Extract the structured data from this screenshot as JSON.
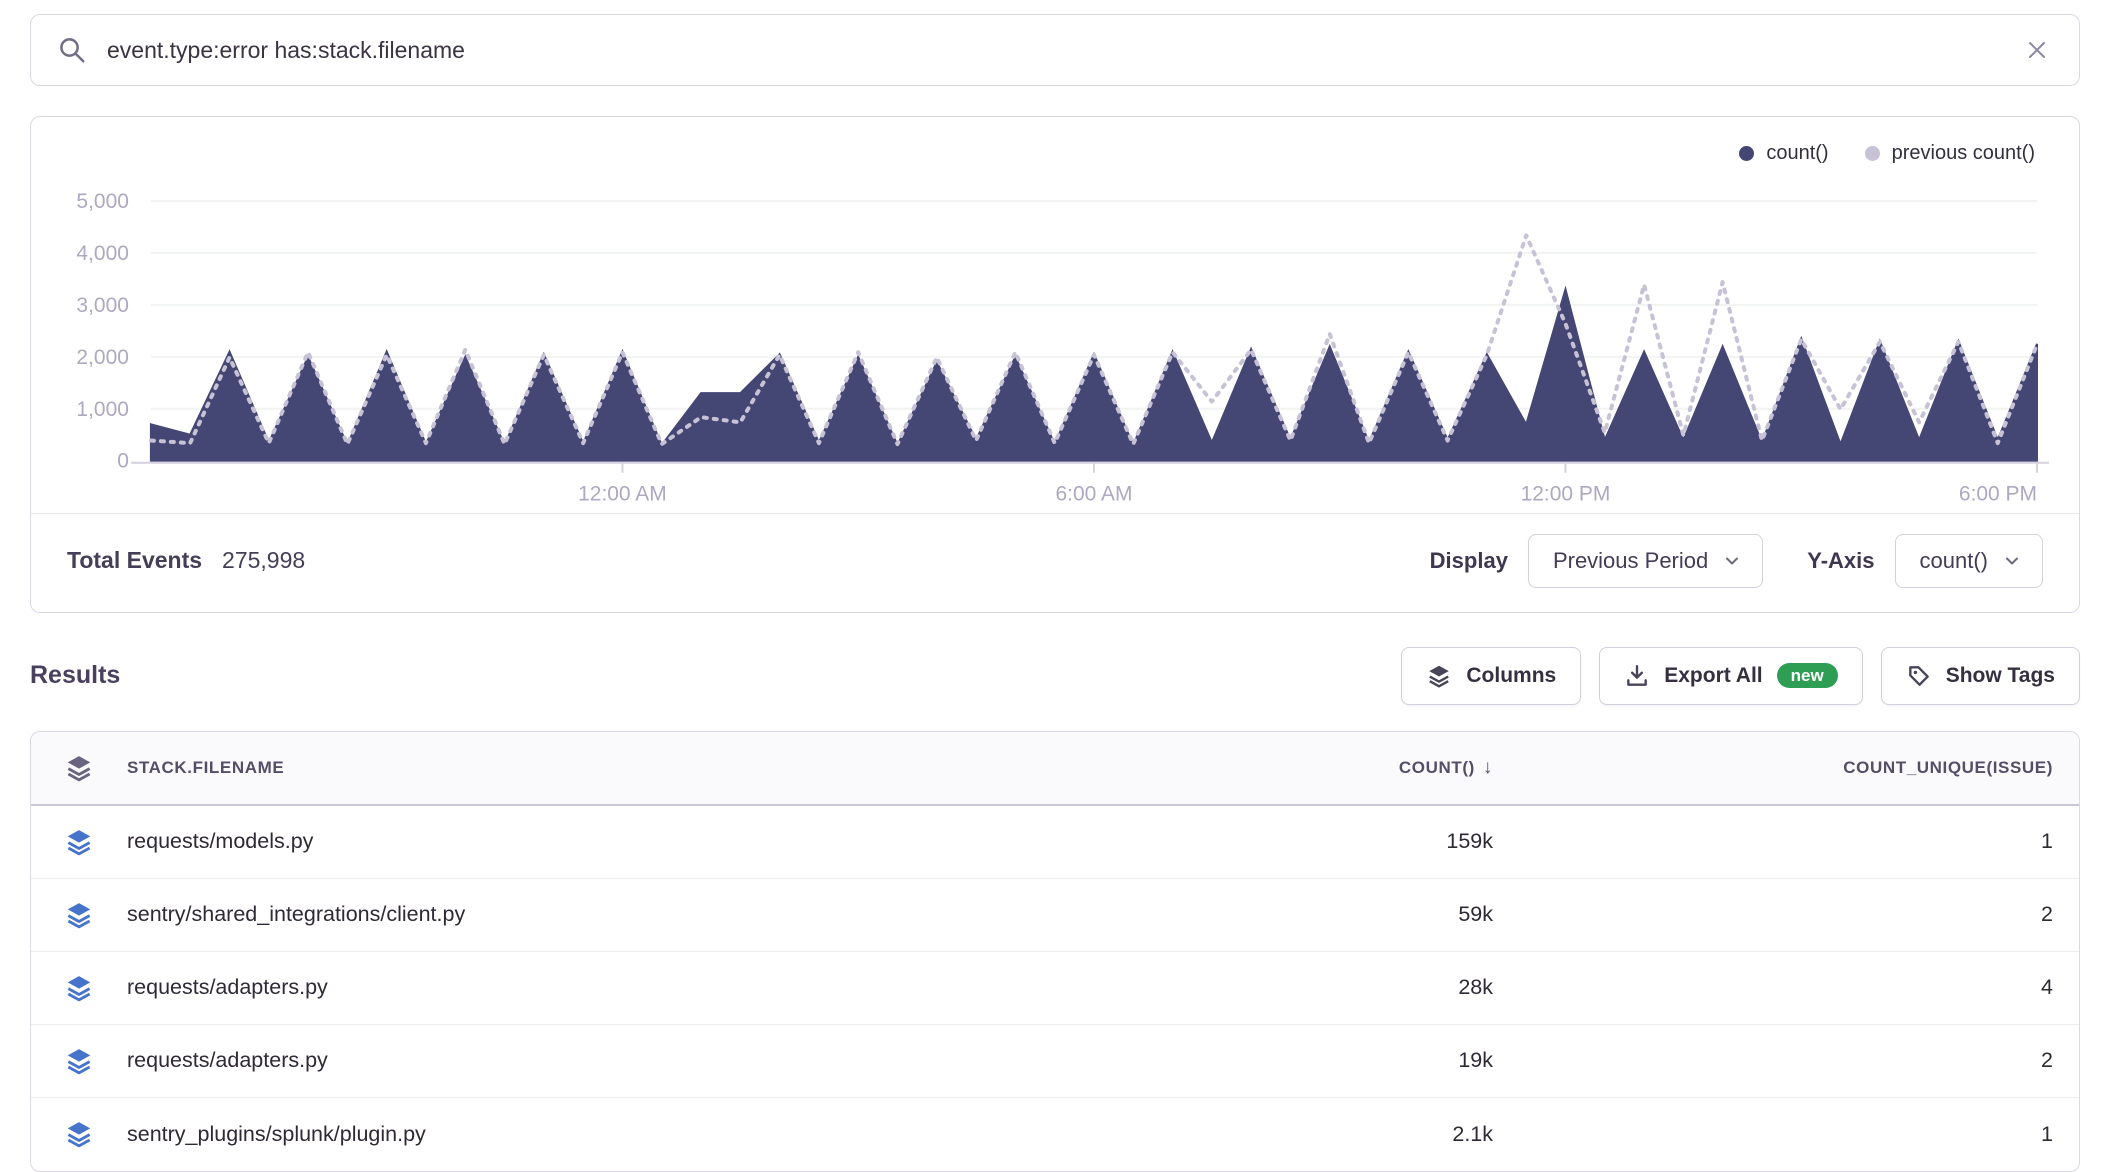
{
  "search": {
    "query": "event.type:error has:stack.filename"
  },
  "chart": {
    "total_events_label": "Total Events",
    "total_events_value": "275,998",
    "display_label": "Display",
    "display_value": "Previous Period",
    "yaxis_label": "Y-Axis",
    "yaxis_value": "count()"
  },
  "chart_data": {
    "type": "area",
    "title": "",
    "xlabel": "",
    "ylabel": "",
    "ylim": [
      0,
      5000
    ],
    "grid": "horizontal-faint",
    "legend_position": "top-right",
    "x_description": "24 hours in 30-minute buckets, from 6:00 PM previous day to 6:00 PM",
    "x_ticks": [
      {
        "label": "12:00 AM",
        "f": 0.25
      },
      {
        "label": "6:00 AM",
        "f": 0.5
      },
      {
        "label": "12:00 PM",
        "f": 0.75
      },
      {
        "label": "6:00 PM",
        "f": 1.0
      }
    ],
    "y_ticks": [
      0,
      1000,
      2000,
      3000,
      4000,
      5000
    ],
    "y_tick_labels": [
      "0",
      "1,000",
      "2,000",
      "3,000",
      "4,000",
      "5,000"
    ],
    "series": [
      {
        "name": "count()",
        "color": "#444674",
        "style": "solid-area",
        "values": [
          700,
          500,
          2100,
          350,
          2000,
          300,
          2100,
          320,
          2000,
          300,
          2050,
          330,
          2100,
          300,
          1300,
          1300,
          2050,
          350,
          2000,
          300,
          1900,
          400,
          2000,
          320,
          2050,
          300,
          2100,
          350,
          2150,
          400,
          2200,
          350,
          2100,
          400,
          2050,
          700,
          3300,
          400,
          2100,
          400,
          2200,
          350,
          2350,
          320,
          2300,
          400,
          2300,
          400,
          2250
        ]
      },
      {
        "name": "previous count()",
        "color": "#c7c2d6",
        "style": "dotted-line",
        "values": [
          350,
          300,
          1950,
          300,
          2050,
          280,
          2000,
          300,
          2100,
          280,
          2000,
          300,
          2050,
          280,
          800,
          700,
          2000,
          300,
          2050,
          280,
          1950,
          350,
          2050,
          300,
          2000,
          280,
          2050,
          1100,
          2100,
          350,
          2400,
          300,
          2050,
          350,
          2000,
          4300,
          2600,
          500,
          3350,
          450,
          3400,
          350,
          2300,
          950,
          2250,
          700,
          2250,
          300,
          2200
        ]
      }
    ]
  },
  "results": {
    "title": "Results",
    "columns_label": "Columns",
    "export_label": "Export All",
    "export_badge": "new",
    "show_tags_label": "Show Tags"
  },
  "table": {
    "columns": {
      "filename": "STACK.FILENAME",
      "count": "COUNT()",
      "count_sort": "desc",
      "unique": "COUNT_UNIQUE(ISSUE)"
    },
    "rows": [
      {
        "filename": "requests/models.py",
        "count": "159k",
        "unique": "1"
      },
      {
        "filename": "sentry/shared_integrations/client.py",
        "count": "59k",
        "unique": "2"
      },
      {
        "filename": "requests/adapters.py",
        "count": "28k",
        "unique": "4"
      },
      {
        "filename": "requests/adapters.py",
        "count": "19k",
        "unique": "2"
      },
      {
        "filename": "sentry_plugins/splunk/plugin.py",
        "count": "2.1k",
        "unique": "1"
      }
    ]
  }
}
